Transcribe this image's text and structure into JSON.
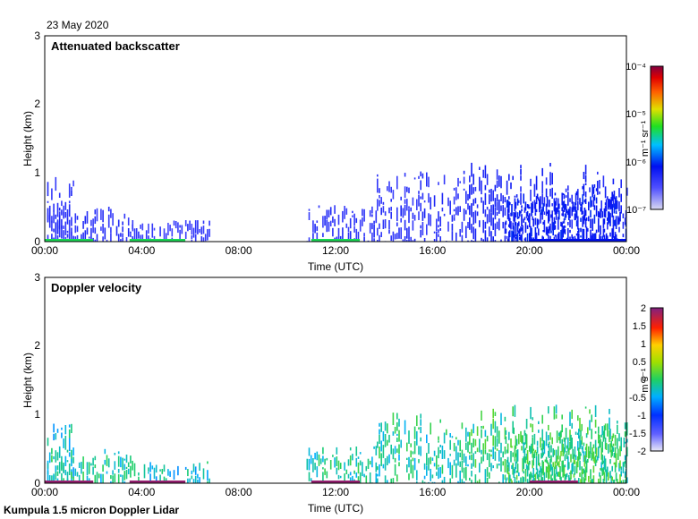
{
  "date": "23 May 2020",
  "footer": "Kumpula 1.5 micron Doppler Lidar",
  "chart_data": [
    {
      "type": "heatmap",
      "title": "Attenuated backscatter",
      "xlabel": "Time (UTC)",
      "ylabel": "Height (km)",
      "xticks": [
        "00:00",
        "04:00",
        "08:00",
        "12:00",
        "16:00",
        "20:00",
        "00:00"
      ],
      "xlim_hours": [
        0,
        24
      ],
      "yticks": [
        "0",
        "1",
        "2",
        "3"
      ],
      "ylim_km": [
        0,
        3
      ],
      "colorbar": {
        "unit": "m⁻¹ sr⁻¹",
        "scale": "log",
        "ticks": [
          "10⁻⁷",
          "10⁻⁶",
          "10⁻⁵",
          "10⁻⁴"
        ],
        "range": [
          1e-07,
          0.0001
        ]
      },
      "features": [
        {
          "start_h": 0.1,
          "end_h": 1.2,
          "top_km": 0.95,
          "level": 0.22
        },
        {
          "start_h": 0.1,
          "end_h": 3.6,
          "top_km": 0.52,
          "level": 0.22
        },
        {
          "start_h": 3.6,
          "end_h": 6.8,
          "top_km": 0.32,
          "level": 0.2
        },
        {
          "start_h": 10.8,
          "end_h": 13.7,
          "top_km": 0.55,
          "level": 0.22
        },
        {
          "start_h": 13.7,
          "end_h": 17.5,
          "top_km": 1.05,
          "level": 0.22
        },
        {
          "start_h": 17.5,
          "end_h": 24.0,
          "top_km": 1.15,
          "level": 0.25
        },
        {
          "start_h": 19.0,
          "end_h": 24.0,
          "top_km": 0.85,
          "level": 0.3
        }
      ],
      "surface_segments": [
        {
          "start_h": 0.0,
          "end_h": 2.0,
          "level": 0.55
        },
        {
          "start_h": 3.5,
          "end_h": 5.8,
          "level": 0.55
        },
        {
          "start_h": 11.0,
          "end_h": 13.0,
          "level": 0.55
        },
        {
          "start_h": 20.0,
          "end_h": 24.0,
          "level": 0.3
        }
      ]
    },
    {
      "type": "heatmap",
      "title": "Doppler velocity",
      "xlabel": "Time (UTC)",
      "ylabel": "Height (km)",
      "xticks": [
        "00:00",
        "04:00",
        "08:00",
        "12:00",
        "16:00",
        "20:00",
        "00:00"
      ],
      "xlim_hours": [
        0,
        24
      ],
      "yticks": [
        "0",
        "1",
        "2",
        "3"
      ],
      "ylim_km": [
        0,
        3
      ],
      "colorbar": {
        "unit": "m s⁻¹",
        "scale": "linear",
        "ticks": [
          "-2",
          "-1.5",
          "-1",
          "-0.5",
          "0",
          "0.5",
          "1",
          "1.5",
          "2"
        ],
        "range": [
          -2,
          2
        ]
      },
      "features": [
        {
          "start_h": 0.1,
          "end_h": 1.2,
          "top_km": 0.95,
          "level": 0.42
        },
        {
          "start_h": 0.1,
          "end_h": 3.6,
          "top_km": 0.52,
          "level": 0.45
        },
        {
          "start_h": 3.6,
          "end_h": 6.8,
          "top_km": 0.32,
          "level": 0.42
        },
        {
          "start_h": 10.8,
          "end_h": 13.7,
          "top_km": 0.55,
          "level": 0.45
        },
        {
          "start_h": 13.7,
          "end_h": 17.5,
          "top_km": 1.05,
          "level": 0.45
        },
        {
          "start_h": 17.5,
          "end_h": 24.0,
          "top_km": 1.15,
          "level": 0.48
        },
        {
          "start_h": 19.0,
          "end_h": 24.0,
          "top_km": 0.85,
          "level": 0.5
        }
      ],
      "surface_segments": [
        {
          "start_h": 0.0,
          "end_h": 2.0,
          "level": 0.98
        },
        {
          "start_h": 3.5,
          "end_h": 5.8,
          "level": 0.98
        },
        {
          "start_h": 11.0,
          "end_h": 13.0,
          "level": 0.98
        },
        {
          "start_h": 20.0,
          "end_h": 22.0,
          "level": 0.98
        }
      ]
    }
  ]
}
